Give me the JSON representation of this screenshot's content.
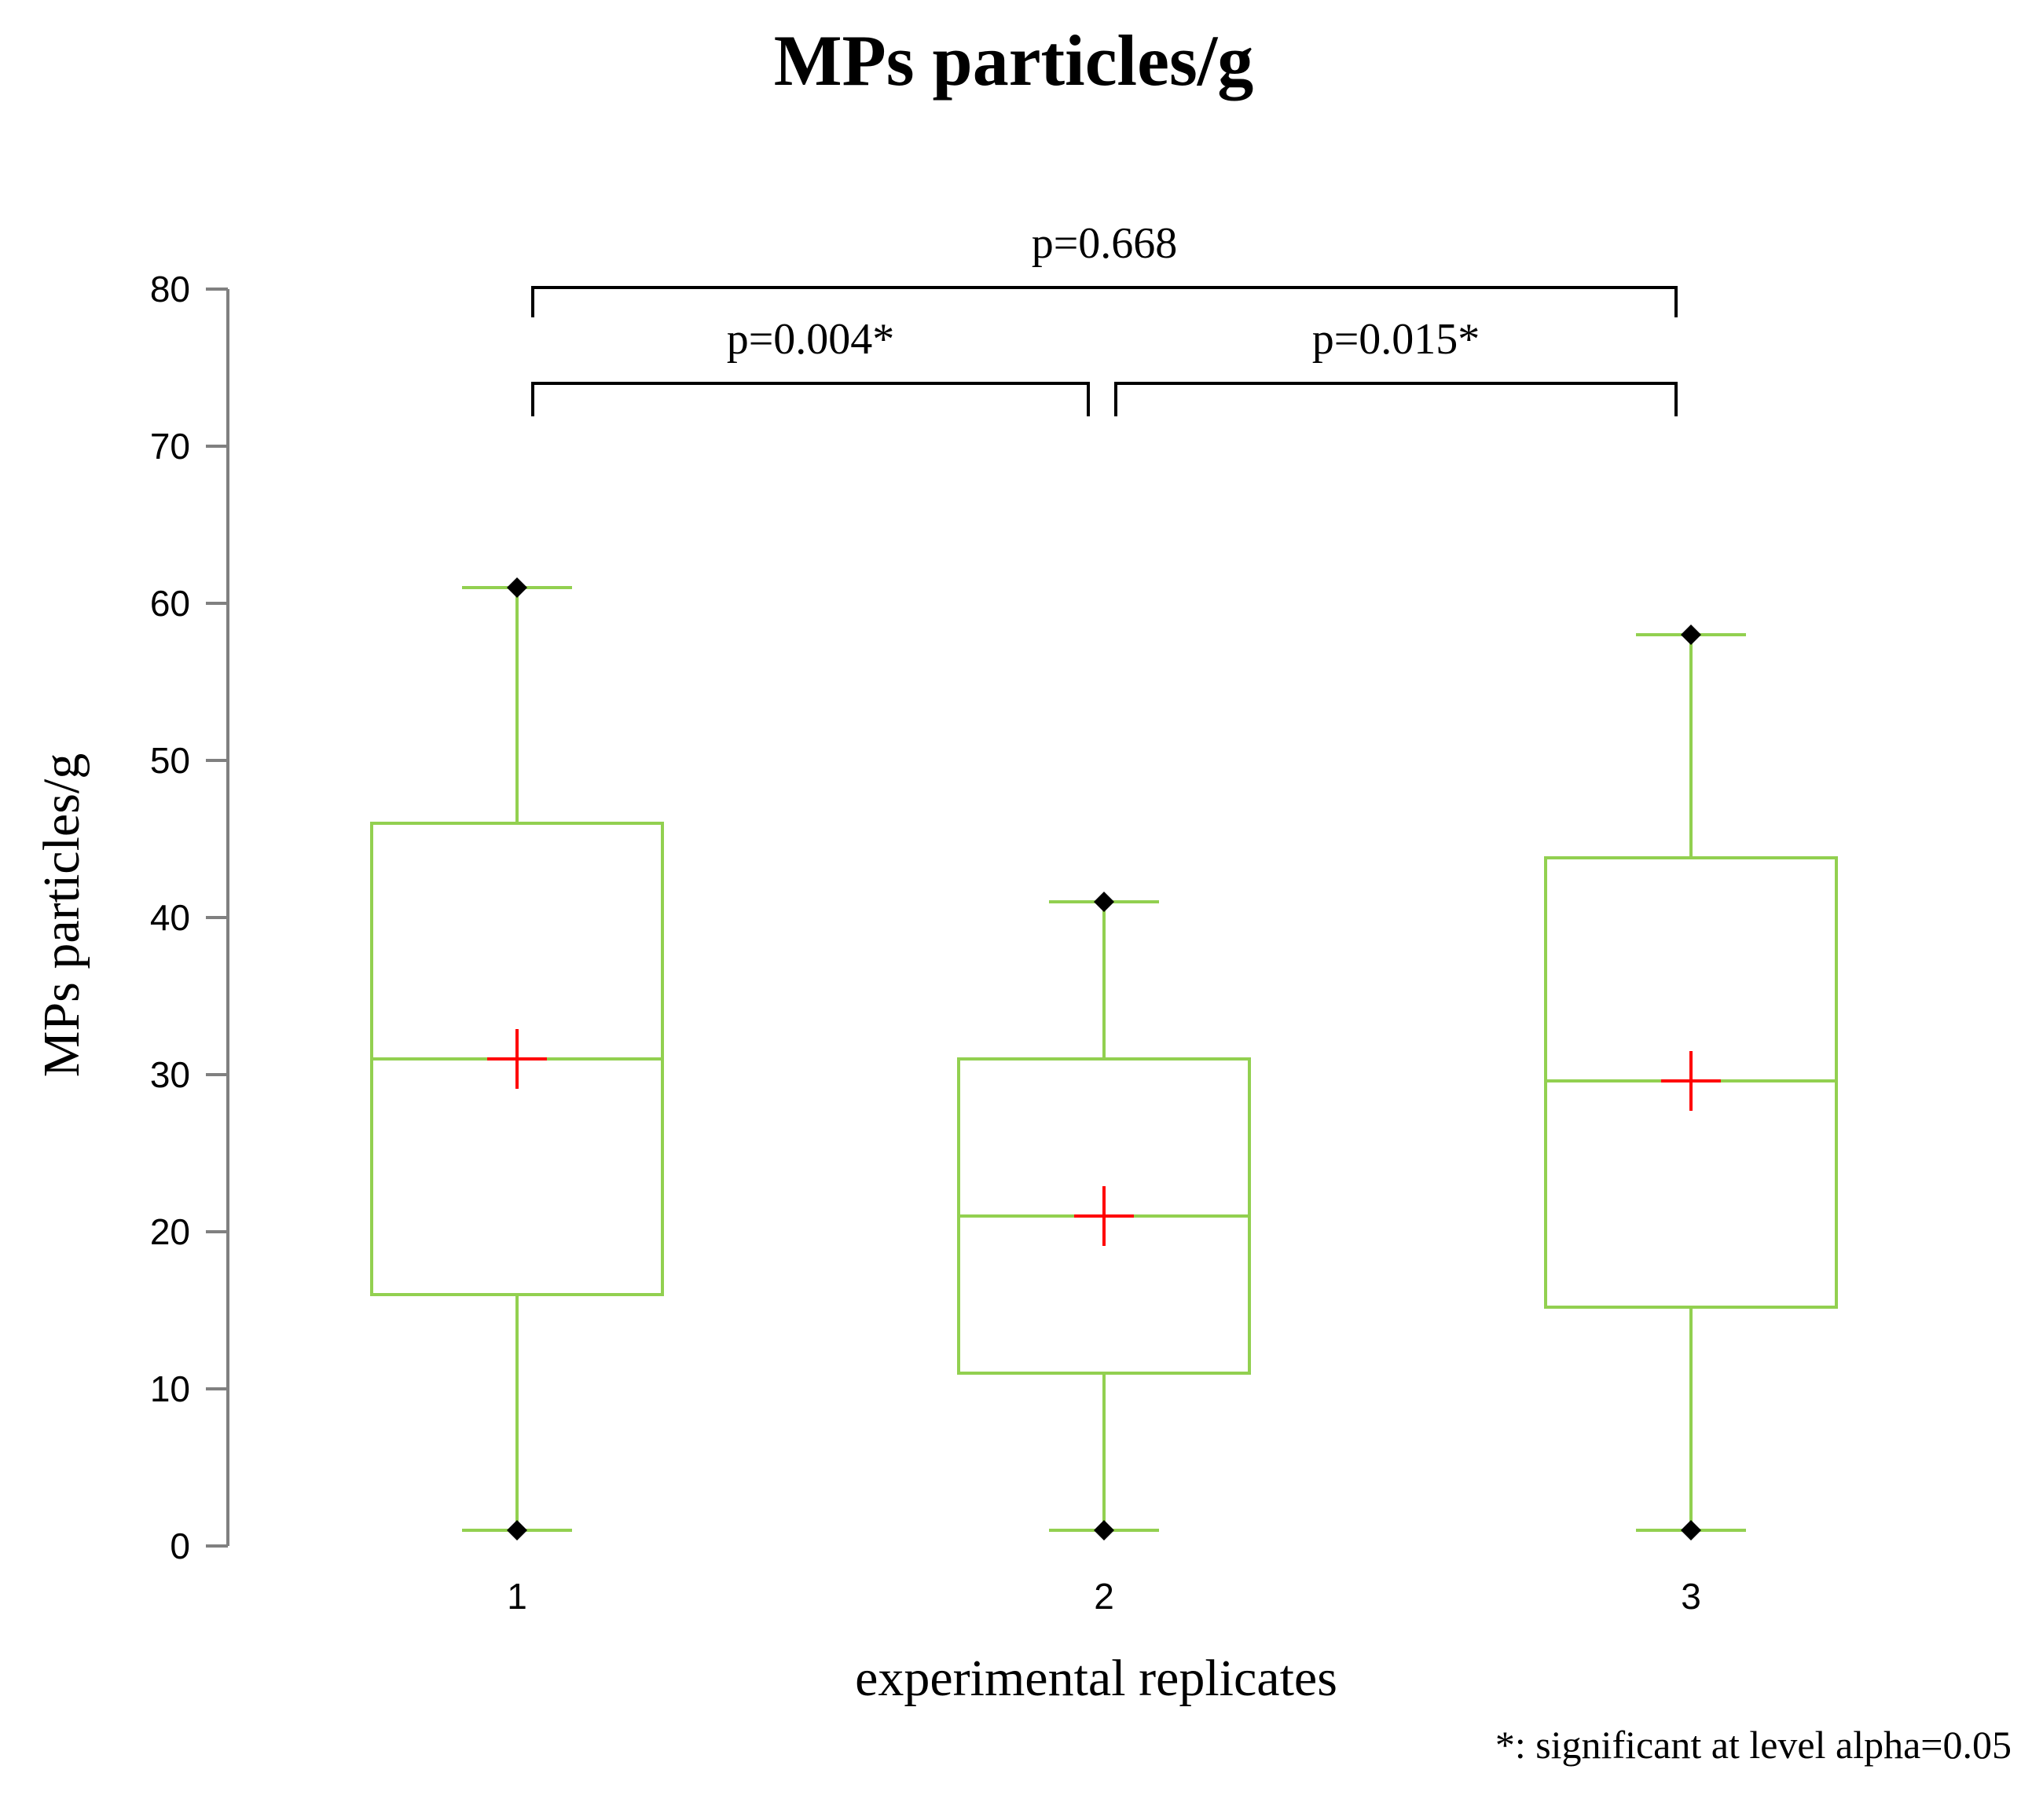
{
  "chart_data": {
    "type": "box",
    "title": "MPs particles/g",
    "xlabel": "experimental replicates",
    "ylabel": "MPs particles/g",
    "ylim": [
      0,
      80
    ],
    "yticks": [
      0,
      10,
      20,
      30,
      40,
      50,
      60,
      70,
      80
    ],
    "categories": [
      "1",
      "2",
      "3"
    ],
    "boxes": [
      {
        "category": "1",
        "min": 1,
        "q1": 16,
        "median": 31,
        "q3": 46,
        "max": 61,
        "mean": 31
      },
      {
        "category": "2",
        "min": 1,
        "q1": 11,
        "median": 21,
        "q3": 31,
        "max": 41,
        "mean": 21
      },
      {
        "category": "3",
        "min": 1,
        "q1": 15.2,
        "median": 29.6,
        "q3": 43.8,
        "max": 58,
        "mean": 29.6
      }
    ],
    "comparisons": [
      {
        "from": "1",
        "to": "2",
        "label": "p=0.004*"
      },
      {
        "from": "2",
        "to": "3",
        "label": "p=0.015*"
      },
      {
        "from": "1",
        "to": "3",
        "label": "p=0.668"
      }
    ],
    "footnote": "*: significant at level alpha=0.05",
    "colors": {
      "box": "#92d050",
      "mean": "#ff0000",
      "extreme": "#000000",
      "axis": "#808080"
    }
  }
}
